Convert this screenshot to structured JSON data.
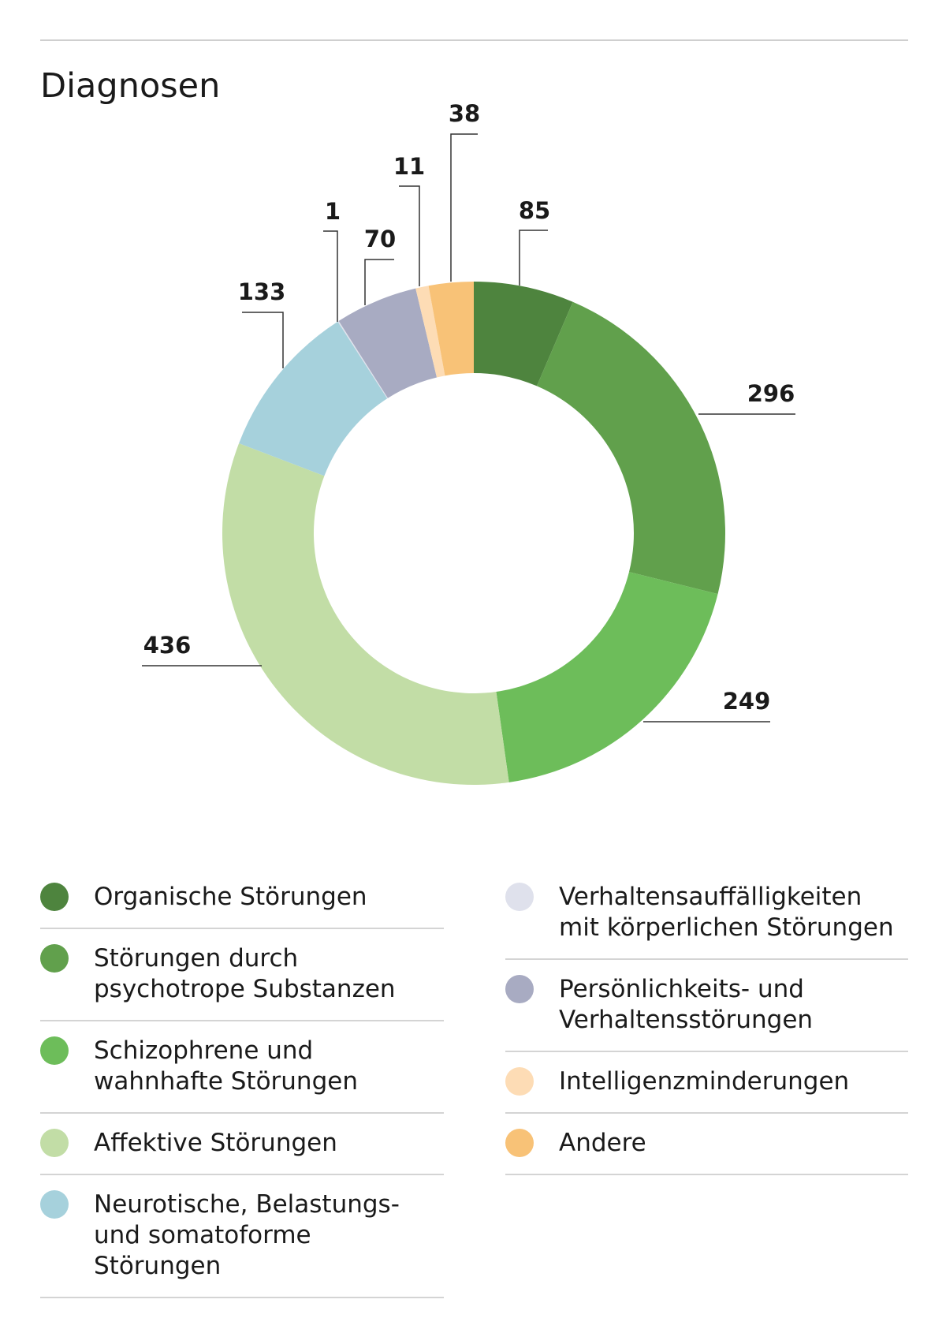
{
  "chart_data": {
    "type": "pie",
    "variant": "donut",
    "title": "Diagnosen",
    "legend_position": "bottom",
    "categories": [
      "Organische Störungen",
      "Störungen durch psychotrope Substanzen",
      "Schizophrene und wahnhafte Störungen",
      "Affektive Störungen",
      "Neurotische, Belastungs- und somatoforme Störungen",
      "Verhaltensauffälligkeiten mit körperlichen Störungen",
      "Persönlichkeits- und Verhaltensstörungen",
      "Intelligenzminderungen",
      "Andere"
    ],
    "values": [
      85,
      296,
      249,
      436,
      133,
      1,
      70,
      11,
      38
    ],
    "data_labels": [
      "85",
      "296",
      "249",
      "436",
      "133",
      "1",
      "70",
      "11",
      "38"
    ],
    "colors": [
      "#4e843e",
      "#61a04c",
      "#6dbd5a",
      "#c2dda6",
      "#a6d1dc",
      "#dfe1ec",
      "#a8abc2",
      "#fddcb5",
      "#f8c277"
    ]
  },
  "legend": {
    "left": [
      {
        "label": "Organische Störungen",
        "idx": 0
      },
      {
        "label": "Störungen durch\npsychotrope Substanzen",
        "idx": 1
      },
      {
        "label": "Schizophrene und\nwahnhafte Störungen",
        "idx": 2
      },
      {
        "label": "Affektive Störungen",
        "idx": 3
      },
      {
        "label": "Neurotische, Belastungs-\nund somatoforme\nStörungen",
        "idx": 4
      }
    ],
    "right": [
      {
        "label": "Verhaltensauffälligkeiten\nmit körperlichen Störungen",
        "idx": 5
      },
      {
        "label": "Persönlichkeits- und\nVerhaltensstörungen",
        "idx": 6
      },
      {
        "label": "Intelligenzminderungen",
        "idx": 7
      },
      {
        "label": "Andere",
        "idx": 8
      }
    ]
  }
}
